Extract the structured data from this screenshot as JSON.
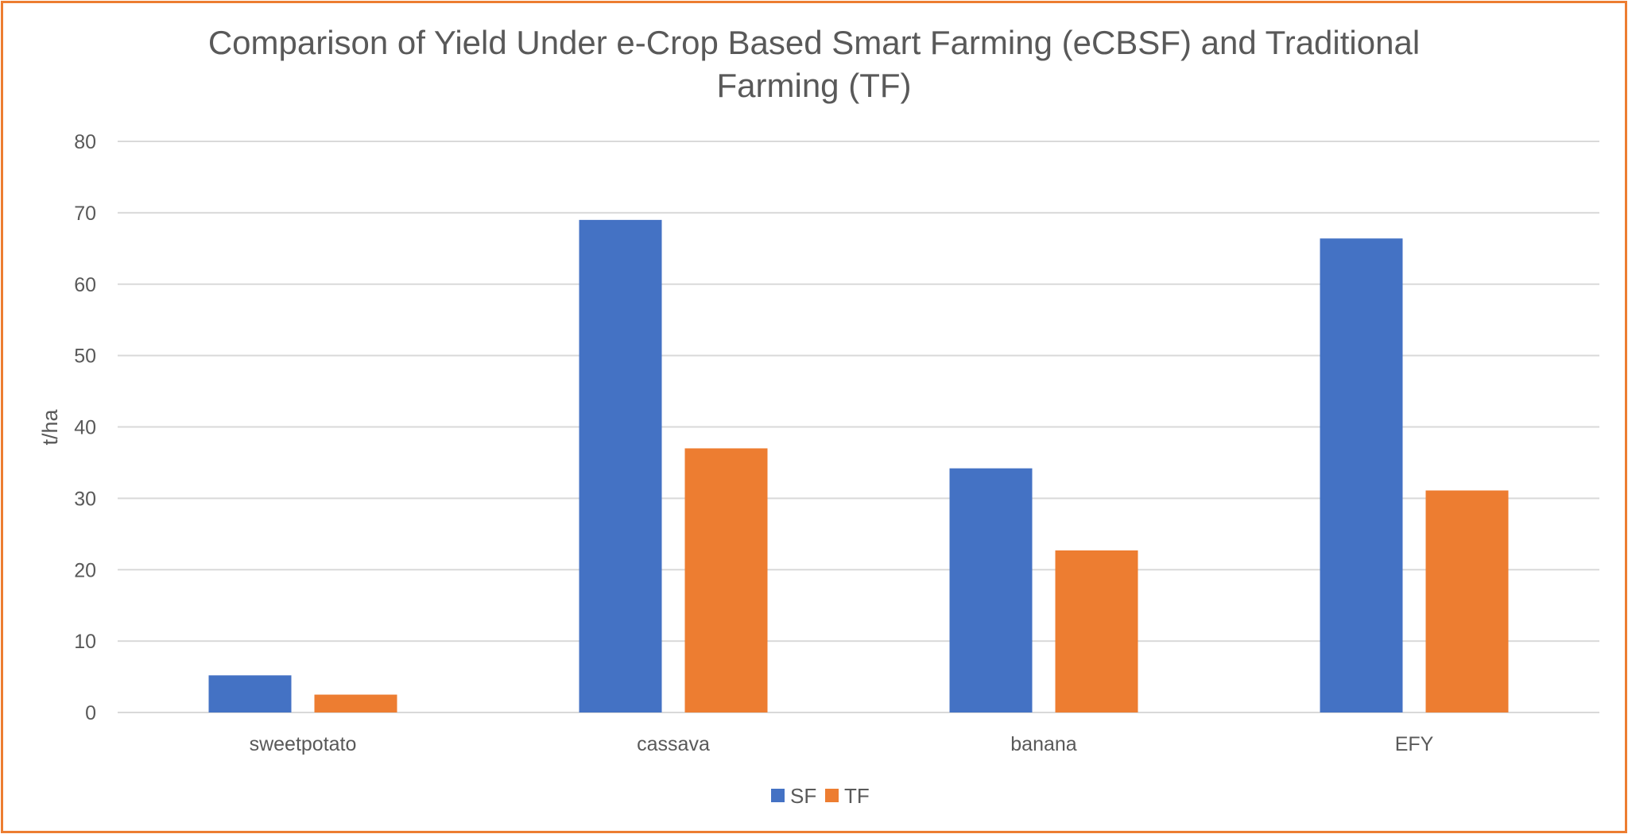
{
  "chart_data": {
    "type": "bar",
    "title_lines": [
      "Comparison of Yield Under e-Crop Based Smart Farming (eCBSF) and Traditional",
      "Farming (TF)"
    ],
    "xlabel": "",
    "ylabel": "t/ha",
    "ylim": [
      0,
      80
    ],
    "yticks": [
      0,
      10,
      20,
      30,
      40,
      50,
      60,
      70,
      80
    ],
    "grid": true,
    "legend_position": "bottom",
    "categories": [
      "sweetpotato",
      "cassava",
      "banana",
      "EFY"
    ],
    "series": [
      {
        "name": "SF",
        "color": "#4472C4",
        "values": [
          5.2,
          69,
          34.2,
          66.4
        ]
      },
      {
        "name": "TF",
        "color": "#ED7D31",
        "values": [
          2.5,
          37,
          22.7,
          31.1
        ]
      }
    ]
  },
  "frame": {
    "border_color": "#ED7D31",
    "grid_color": "#D9D9D9",
    "text_color": "#595959"
  }
}
